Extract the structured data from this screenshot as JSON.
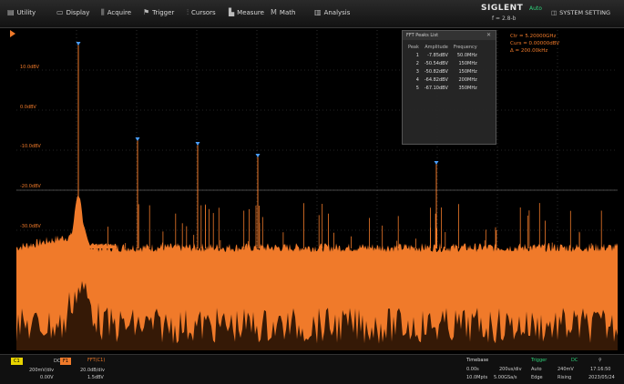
{
  "menu": {
    "items": [
      {
        "label": "Utility",
        "icon": "utility-icon"
      },
      {
        "label": "Display",
        "icon": "display-icon"
      },
      {
        "label": "Acquire",
        "icon": "acquire-icon"
      },
      {
        "label": "Trigger",
        "icon": "trigger-icon"
      },
      {
        "label": "Cursors",
        "icon": "cursors-icon"
      },
      {
        "label": "Measure",
        "icon": "measure-icon"
      },
      {
        "label": "Math",
        "icon": "math-icon"
      },
      {
        "label": "Analysis",
        "icon": "analysis-icon"
      }
    ],
    "brand": "SIGLENT",
    "run_state": "Auto",
    "trigger_rate": "f = 2.8-b",
    "system_setting": "SYSTEM SETTING"
  },
  "peaks_table": {
    "title": "FFT Peaks List",
    "headers": [
      "Peak",
      "Amplitude",
      "Frequency"
    ],
    "rows": [
      [
        "1",
        "-7.85dBV",
        "50.0MHz"
      ],
      [
        "2",
        "-50.54dBV",
        "150MHz"
      ],
      [
        "3",
        "-50.82dBV",
        "150MHz"
      ],
      [
        "4",
        "-64.82dBV",
        "200MHz"
      ],
      [
        "5",
        "-67.10dBV",
        "350MHz"
      ]
    ]
  },
  "readout": {
    "line1": "Ctr = 5.20000GHz",
    "line2": "Curs = 0.00000dBV",
    "line3": "Δ = 200.00kHz"
  },
  "y_labels": [
    "10.0dBV",
    "0.0dBV",
    "-10.0dBV",
    "-20.0dBV",
    "-30.0dBV"
  ],
  "bottom": {
    "c1": "C1",
    "c1_scale": "200mV/div",
    "c1_offset": "0.00V",
    "c1_coupling": "DC",
    "math": "F1",
    "math_label": "FFT(C1)",
    "math_scale": "20.0dB/div",
    "math_offset": "1.5dBV",
    "timebase_title": "Timebase",
    "timebase_pos": "0.00s",
    "timebase_scale": "200us/div",
    "sample_rate": "10.0Mpts",
    "sample_rate2": "5.00GSa/s",
    "trigger_title": "Trigger",
    "trigger_mode": "Auto",
    "trigger_type": "Edge",
    "trigger_level": "240mV",
    "trigger_slope": "Rising",
    "trigger_src": "DC",
    "time": "17:16:50",
    "date": "2023/05/24"
  },
  "colors": {
    "trace": "#f07a2a",
    "grid": "#4a4a4a",
    "accent_green": "#2fd27a",
    "c1_yellow": "#e8d400"
  }
}
